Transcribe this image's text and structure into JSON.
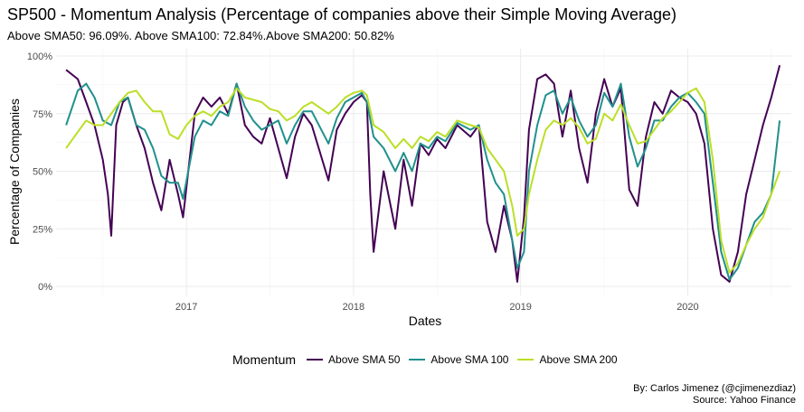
{
  "chart_data": {
    "type": "line",
    "title": "SP500 - Momentum Analysis (Percentage of companies above their Simple Moving Average)",
    "subtitle": "Above SMA50: 96.09%. Above SMA100: 72.84%.Above SMA200: 50.82%",
    "xlabel": "Dates",
    "ylabel": "Percentage of Companies",
    "x_ticks": [
      "2017",
      "2018",
      "2019",
      "2020"
    ],
    "y_ticks": [
      "0%",
      "25%",
      "50%",
      "75%",
      "100%"
    ],
    "xlim": [
      2016.22,
      2020.62
    ],
    "ylim": [
      0,
      100
    ],
    "grid": true,
    "legend_title": "Momentum",
    "legend_position": "bottom",
    "caption": [
      "By: Carlos Jimenez (@cjimenezdiaz)",
      "Source: Yahoo Finance"
    ],
    "series": [
      {
        "name": "Above SMA 50",
        "color": "#440154",
        "points": [
          [
            2016.28,
            94
          ],
          [
            2016.35,
            90
          ],
          [
            2016.4,
            80
          ],
          [
            2016.45,
            70
          ],
          [
            2016.5,
            55
          ],
          [
            2016.53,
            40
          ],
          [
            2016.55,
            22
          ],
          [
            2016.58,
            70
          ],
          [
            2016.62,
            80
          ],
          [
            2016.65,
            82
          ],
          [
            2016.7,
            70
          ],
          [
            2016.75,
            60
          ],
          [
            2016.8,
            45
          ],
          [
            2016.85,
            33
          ],
          [
            2016.9,
            55
          ],
          [
            2016.95,
            40
          ],
          [
            2016.98,
            30
          ],
          [
            2017.05,
            75
          ],
          [
            2017.1,
            82
          ],
          [
            2017.15,
            78
          ],
          [
            2017.2,
            82
          ],
          [
            2017.25,
            75
          ],
          [
            2017.3,
            88
          ],
          [
            2017.35,
            70
          ],
          [
            2017.4,
            65
          ],
          [
            2017.45,
            62
          ],
          [
            2017.5,
            73
          ],
          [
            2017.55,
            60
          ],
          [
            2017.6,
            47
          ],
          [
            2017.65,
            65
          ],
          [
            2017.7,
            75
          ],
          [
            2017.75,
            70
          ],
          [
            2017.85,
            46
          ],
          [
            2017.9,
            68
          ],
          [
            2017.95,
            75
          ],
          [
            2018.0,
            80
          ],
          [
            2018.05,
            83
          ],
          [
            2018.08,
            80
          ],
          [
            2018.1,
            40
          ],
          [
            2018.12,
            15
          ],
          [
            2018.18,
            50
          ],
          [
            2018.25,
            25
          ],
          [
            2018.3,
            55
          ],
          [
            2018.35,
            35
          ],
          [
            2018.4,
            62
          ],
          [
            2018.45,
            57
          ],
          [
            2018.5,
            64
          ],
          [
            2018.55,
            60
          ],
          [
            2018.62,
            70
          ],
          [
            2018.7,
            65
          ],
          [
            2018.75,
            70
          ],
          [
            2018.8,
            28
          ],
          [
            2018.85,
            15
          ],
          [
            2018.9,
            35
          ],
          [
            2018.95,
            20
          ],
          [
            2018.98,
            2
          ],
          [
            2019.02,
            30
          ],
          [
            2019.05,
            68
          ],
          [
            2019.1,
            90
          ],
          [
            2019.15,
            92
          ],
          [
            2019.2,
            88
          ],
          [
            2019.25,
            65
          ],
          [
            2019.3,
            85
          ],
          [
            2019.35,
            60
          ],
          [
            2019.4,
            45
          ],
          [
            2019.45,
            75
          ],
          [
            2019.5,
            90
          ],
          [
            2019.55,
            78
          ],
          [
            2019.6,
            86
          ],
          [
            2019.65,
            42
          ],
          [
            2019.7,
            35
          ],
          [
            2019.75,
            65
          ],
          [
            2019.8,
            80
          ],
          [
            2019.85,
            75
          ],
          [
            2019.9,
            85
          ],
          [
            2019.95,
            82
          ],
          [
            2020.0,
            80
          ],
          [
            2020.05,
            75
          ],
          [
            2020.1,
            62
          ],
          [
            2020.15,
            25
          ],
          [
            2020.2,
            5
          ],
          [
            2020.25,
            2
          ],
          [
            2020.3,
            15
          ],
          [
            2020.35,
            40
          ],
          [
            2020.4,
            55
          ],
          [
            2020.45,
            70
          ],
          [
            2020.5,
            82
          ],
          [
            2020.55,
            96
          ]
        ]
      },
      {
        "name": "Above SMA 100",
        "color": "#21908C",
        "points": [
          [
            2016.28,
            70
          ],
          [
            2016.35,
            85
          ],
          [
            2016.4,
            88
          ],
          [
            2016.45,
            82
          ],
          [
            2016.5,
            72
          ],
          [
            2016.55,
            70
          ],
          [
            2016.6,
            80
          ],
          [
            2016.65,
            82
          ],
          [
            2016.7,
            70
          ],
          [
            2016.75,
            68
          ],
          [
            2016.8,
            60
          ],
          [
            2016.85,
            48
          ],
          [
            2016.9,
            45
          ],
          [
            2016.95,
            45
          ],
          [
            2016.98,
            38
          ],
          [
            2017.05,
            65
          ],
          [
            2017.1,
            72
          ],
          [
            2017.15,
            70
          ],
          [
            2017.2,
            76
          ],
          [
            2017.25,
            74
          ],
          [
            2017.3,
            88
          ],
          [
            2017.35,
            78
          ],
          [
            2017.4,
            72
          ],
          [
            2017.45,
            68
          ],
          [
            2017.5,
            70
          ],
          [
            2017.55,
            72
          ],
          [
            2017.6,
            62
          ],
          [
            2017.65,
            70
          ],
          [
            2017.7,
            76
          ],
          [
            2017.75,
            76
          ],
          [
            2017.85,
            62
          ],
          [
            2017.9,
            73
          ],
          [
            2017.95,
            80
          ],
          [
            2018.0,
            82
          ],
          [
            2018.05,
            84
          ],
          [
            2018.08,
            80
          ],
          [
            2018.12,
            65
          ],
          [
            2018.18,
            60
          ],
          [
            2018.25,
            50
          ],
          [
            2018.3,
            58
          ],
          [
            2018.35,
            50
          ],
          [
            2018.4,
            62
          ],
          [
            2018.45,
            60
          ],
          [
            2018.5,
            65
          ],
          [
            2018.55,
            63
          ],
          [
            2018.62,
            71
          ],
          [
            2018.7,
            68
          ],
          [
            2018.75,
            70
          ],
          [
            2018.8,
            55
          ],
          [
            2018.85,
            45
          ],
          [
            2018.9,
            40
          ],
          [
            2018.95,
            20
          ],
          [
            2018.98,
            8
          ],
          [
            2019.02,
            15
          ],
          [
            2019.05,
            50
          ],
          [
            2019.1,
            70
          ],
          [
            2019.15,
            83
          ],
          [
            2019.2,
            85
          ],
          [
            2019.25,
            75
          ],
          [
            2019.3,
            82
          ],
          [
            2019.35,
            72
          ],
          [
            2019.4,
            65
          ],
          [
            2019.45,
            70
          ],
          [
            2019.5,
            84
          ],
          [
            2019.55,
            78
          ],
          [
            2019.6,
            88
          ],
          [
            2019.65,
            65
          ],
          [
            2019.7,
            52
          ],
          [
            2019.75,
            60
          ],
          [
            2019.8,
            72
          ],
          [
            2019.85,
            72
          ],
          [
            2019.9,
            78
          ],
          [
            2019.95,
            82
          ],
          [
            2020.0,
            84
          ],
          [
            2020.05,
            80
          ],
          [
            2020.1,
            75
          ],
          [
            2020.15,
            45
          ],
          [
            2020.2,
            15
          ],
          [
            2020.25,
            3
          ],
          [
            2020.3,
            8
          ],
          [
            2020.35,
            18
          ],
          [
            2020.4,
            28
          ],
          [
            2020.45,
            32
          ],
          [
            2020.5,
            40
          ],
          [
            2020.55,
            72
          ]
        ]
      },
      {
        "name": "Above SMA 200",
        "color": "#BBDF27",
        "points": [
          [
            2016.28,
            60
          ],
          [
            2016.35,
            67
          ],
          [
            2016.4,
            72
          ],
          [
            2016.45,
            70
          ],
          [
            2016.5,
            70
          ],
          [
            2016.55,
            75
          ],
          [
            2016.6,
            80
          ],
          [
            2016.65,
            84
          ],
          [
            2016.7,
            85
          ],
          [
            2016.75,
            80
          ],
          [
            2016.8,
            76
          ],
          [
            2016.85,
            76
          ],
          [
            2016.9,
            66
          ],
          [
            2016.95,
            64
          ],
          [
            2017.0,
            70
          ],
          [
            2017.05,
            74
          ],
          [
            2017.1,
            76
          ],
          [
            2017.15,
            74
          ],
          [
            2017.2,
            78
          ],
          [
            2017.25,
            80
          ],
          [
            2017.3,
            86
          ],
          [
            2017.35,
            82
          ],
          [
            2017.4,
            81
          ],
          [
            2017.45,
            80
          ],
          [
            2017.5,
            77
          ],
          [
            2017.55,
            76
          ],
          [
            2017.6,
            72
          ],
          [
            2017.65,
            74
          ],
          [
            2017.7,
            78
          ],
          [
            2017.75,
            80
          ],
          [
            2017.85,
            75
          ],
          [
            2017.9,
            78
          ],
          [
            2017.95,
            82
          ],
          [
            2018.0,
            84
          ],
          [
            2018.05,
            85
          ],
          [
            2018.08,
            83
          ],
          [
            2018.12,
            70
          ],
          [
            2018.18,
            67
          ],
          [
            2018.25,
            60
          ],
          [
            2018.3,
            64
          ],
          [
            2018.35,
            60
          ],
          [
            2018.4,
            65
          ],
          [
            2018.45,
            63
          ],
          [
            2018.5,
            67
          ],
          [
            2018.55,
            65
          ],
          [
            2018.62,
            72
          ],
          [
            2018.7,
            70
          ],
          [
            2018.75,
            69
          ],
          [
            2018.8,
            60
          ],
          [
            2018.85,
            55
          ],
          [
            2018.9,
            50
          ],
          [
            2018.95,
            35
          ],
          [
            2018.98,
            22
          ],
          [
            2019.02,
            25
          ],
          [
            2019.05,
            40
          ],
          [
            2019.1,
            55
          ],
          [
            2019.15,
            68
          ],
          [
            2019.2,
            72
          ],
          [
            2019.25,
            70
          ],
          [
            2019.3,
            73
          ],
          [
            2019.35,
            69
          ],
          [
            2019.4,
            62
          ],
          [
            2019.45,
            64
          ],
          [
            2019.5,
            75
          ],
          [
            2019.55,
            72
          ],
          [
            2019.6,
            79
          ],
          [
            2019.65,
            70
          ],
          [
            2019.7,
            62
          ],
          [
            2019.75,
            63
          ],
          [
            2019.8,
            68
          ],
          [
            2019.85,
            73
          ],
          [
            2019.9,
            76
          ],
          [
            2019.95,
            80
          ],
          [
            2020.0,
            84
          ],
          [
            2020.05,
            86
          ],
          [
            2020.1,
            80
          ],
          [
            2020.15,
            55
          ],
          [
            2020.2,
            20
          ],
          [
            2020.25,
            6
          ],
          [
            2020.3,
            10
          ],
          [
            2020.35,
            18
          ],
          [
            2020.4,
            25
          ],
          [
            2020.45,
            30
          ],
          [
            2020.5,
            40
          ],
          [
            2020.55,
            50
          ]
        ]
      }
    ]
  }
}
